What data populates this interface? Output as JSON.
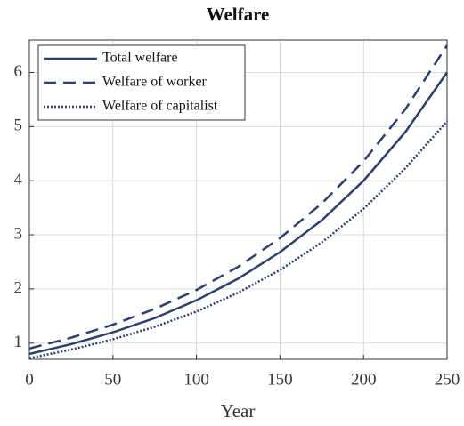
{
  "chart_data": {
    "type": "line",
    "title": "Welfare",
    "x_label": "Year",
    "x": [
      0,
      25,
      50,
      75,
      100,
      125,
      150,
      175,
      200,
      225,
      250
    ],
    "series": [
      {
        "name": "Total welfare",
        "color": "#2b3f73",
        "style": "solid",
        "values": [
          0.8,
          0.98,
          1.2,
          1.46,
          1.79,
          2.19,
          2.68,
          3.27,
          4.0,
          4.9,
          6.0
        ]
      },
      {
        "name": "Welfare of worker",
        "color": "#2b3f73",
        "style": "dashed",
        "values": [
          0.9,
          1.1,
          1.34,
          1.63,
          1.98,
          2.41,
          2.94,
          3.58,
          4.36,
          5.32,
          6.5
        ]
      },
      {
        "name": "Welfare of capitalist",
        "color": "#2b3f73",
        "style": "dotted",
        "values": [
          0.72,
          0.88,
          1.07,
          1.3,
          1.58,
          1.93,
          2.35,
          2.86,
          3.48,
          4.23,
          5.1
        ]
      }
    ],
    "xlim": [
      0,
      250
    ],
    "xticks": [
      0,
      50,
      100,
      150,
      200,
      250
    ],
    "ylim": [
      0.7,
      6.6
    ],
    "yticks": [
      1,
      2,
      3,
      4,
      5,
      6
    ],
    "grid": true,
    "legend": "top-left"
  }
}
